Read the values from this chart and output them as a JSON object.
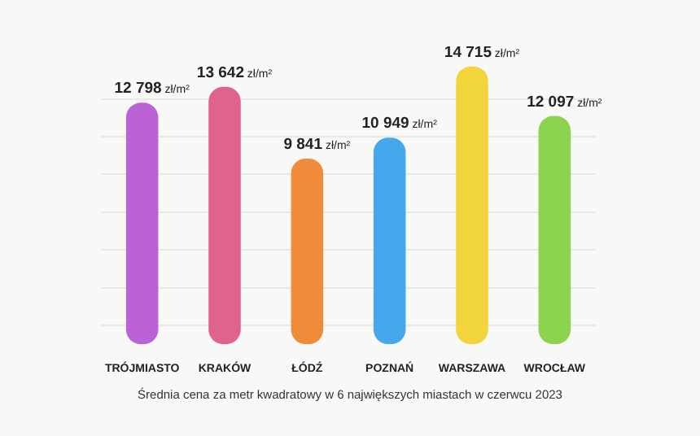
{
  "chart_data": {
    "type": "bar",
    "categories": [
      "TRÓJMIASTO",
      "KRAKÓW",
      "ŁÓDŹ",
      "POZNAŃ",
      "WARSZAWA",
      "WROCŁAW"
    ],
    "values": [
      12798,
      13642,
      9841,
      10949,
      14715,
      12097
    ],
    "colors": [
      "#bb62d6",
      "#e0628f",
      "#f08b3a",
      "#45a8ec",
      "#f2d53c",
      "#8cd450"
    ],
    "value_labels": [
      "12 798 zł/m²",
      "13 642 zł/m²",
      "9 841 zł/m²",
      "10 949 zł/m²",
      "14 715 zł/m²",
      "12 097 zł/m²"
    ],
    "yticks": [
      {
        "value": 1000,
        "label": null
      },
      {
        "value": 3000,
        "label": null
      },
      {
        "value": 5000,
        "label": null
      },
      {
        "value": 7000,
        "label": null
      },
      {
        "value": 9000,
        "label": null
      },
      {
        "value": 11000,
        "label": null
      },
      {
        "value": 13000,
        "label": null
      }
    ],
    "grid": "y",
    "tick_labels": "x",
    "annotations": [
      "Średnia cena za metr kwadratowy w 6 największych miastach w czerwcu 2023"
    ]
  }
}
